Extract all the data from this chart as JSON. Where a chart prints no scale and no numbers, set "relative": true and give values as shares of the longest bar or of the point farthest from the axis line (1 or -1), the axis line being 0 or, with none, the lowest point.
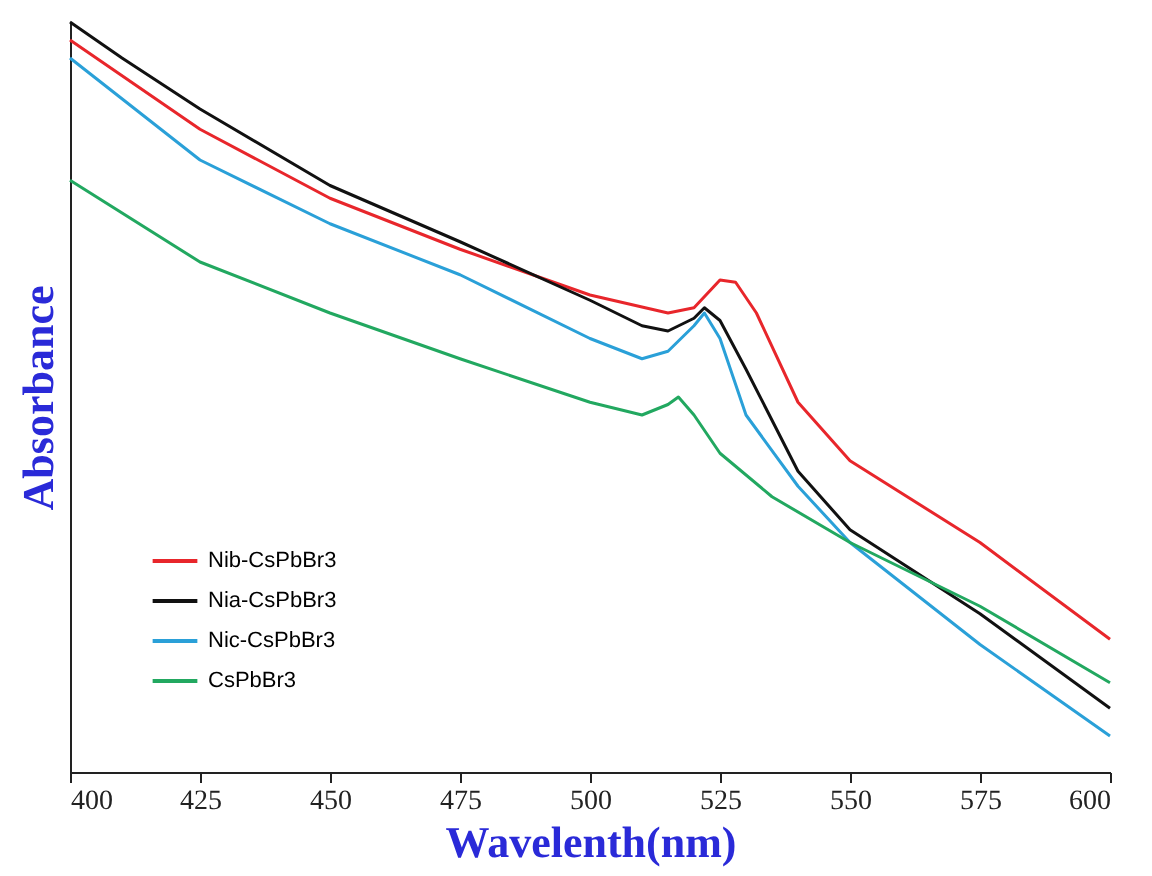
{
  "chart_data": {
    "type": "line",
    "xlabel": "Wavelenth(nm)",
    "ylabel": "Absorbance",
    "relative": true,
    "xlim": [
      400,
      600
    ],
    "xticks": [
      400,
      425,
      450,
      475,
      500,
      525,
      550,
      575,
      600
    ],
    "legend": "bottom left",
    "grid": false,
    "line_style": "solid",
    "marker": "none",
    "series": [
      {
        "name": "Nib-CsPbBr3",
        "color": "#e8262b",
        "x": [
          400,
          425,
          450,
          475,
          500,
          515,
          520,
          525,
          528,
          532,
          540,
          550,
          575,
          600
        ],
        "values": [
          0.976,
          0.857,
          0.765,
          0.697,
          0.636,
          0.612,
          0.619,
          0.656,
          0.653,
          0.612,
          0.493,
          0.415,
          0.306,
          0.177
        ]
      },
      {
        "name": "Nia-CsPbBr3",
        "color": "#111111",
        "x": [
          400,
          410,
          425,
          450,
          475,
          500,
          510,
          515,
          520,
          522,
          525,
          530,
          540,
          550,
          575,
          600
        ],
        "values": [
          1.0,
          0.952,
          0.884,
          0.782,
          0.707,
          0.629,
          0.595,
          0.588,
          0.605,
          0.619,
          0.602,
          0.537,
          0.401,
          0.323,
          0.211,
          0.085
        ]
      },
      {
        "name": "Nic-CsPbBr3",
        "color": "#2aa0d8",
        "x": [
          400,
          425,
          450,
          475,
          500,
          510,
          515,
          520,
          522,
          525,
          530,
          540,
          550,
          575,
          600
        ],
        "values": [
          0.952,
          0.816,
          0.731,
          0.663,
          0.578,
          0.551,
          0.561,
          0.595,
          0.612,
          0.578,
          0.476,
          0.381,
          0.306,
          0.17,
          0.048
        ]
      },
      {
        "name": "CsPbBr3",
        "color": "#22a860",
        "x": [
          400,
          425,
          450,
          475,
          500,
          510,
          515,
          517,
          520,
          525,
          535,
          550,
          575,
          600
        ],
        "values": [
          0.789,
          0.68,
          0.612,
          0.551,
          0.493,
          0.476,
          0.49,
          0.5,
          0.476,
          0.425,
          0.367,
          0.306,
          0.221,
          0.119
        ]
      }
    ]
  }
}
